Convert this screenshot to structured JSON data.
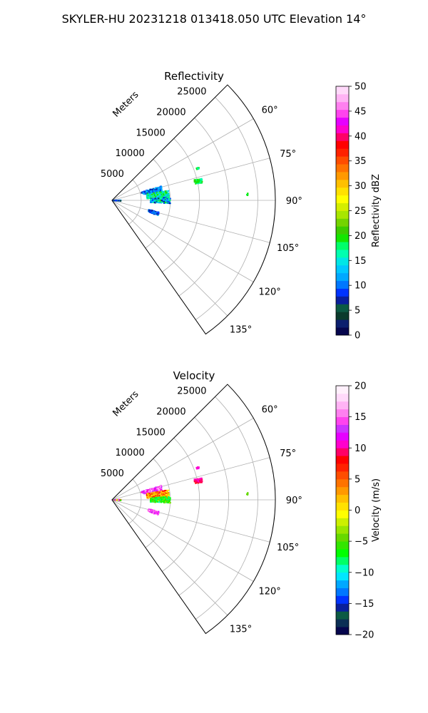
{
  "suptitle": "SKYLER-HU  20231218  013418.050 UTC Elevation 14°",
  "chart_data": [
    {
      "type": "polar-sector",
      "title": "Reflectivity",
      "range_label": "Meters",
      "range_ticks": [
        "5000",
        "10000",
        "15000",
        "20000",
        "25000"
      ],
      "range_values": [
        5000,
        10000,
        15000,
        20000,
        25000
      ],
      "rmax": 28000,
      "azimuth_range": [
        45,
        145
      ],
      "azimuth_ticks": [
        "60°",
        "75°",
        "90°",
        "105°",
        "120°",
        "135°"
      ],
      "azimuth_values": [
        60,
        75,
        90,
        105,
        120,
        135
      ],
      "grid": true,
      "colorbar": {
        "label": "Reflectivity dBZ",
        "min": 0,
        "max": 50,
        "ticks": [
          "0",
          "5",
          "10",
          "15",
          "20",
          "25",
          "30",
          "35",
          "40",
          "45",
          "50"
        ],
        "colors": [
          "#06064d",
          "#0c1f6e",
          "#0b3b2c",
          "#0c5a44",
          "#0a1f9c",
          "#0033ff",
          "#0077ff",
          "#00a8ff",
          "#00c8ff",
          "#00e6e6",
          "#00ffb0",
          "#00ff6a",
          "#14e600",
          "#3ccc00",
          "#74d400",
          "#a8e600",
          "#d4ee00",
          "#ffff00",
          "#ffe100",
          "#ffc000",
          "#ff9900",
          "#ff7300",
          "#ff4d00",
          "#ff2200",
          "#ff0000",
          "#ff0066",
          "#ff00cc",
          "#e600ff",
          "#ff44ee",
          "#ff80f0",
          "#ffb3f5",
          "#ffd9fa"
        ]
      },
      "echo_clusters": [
        {
          "az": [
            74,
            79
          ],
          "range": [
            5200,
            8800
          ],
          "values": [
            6,
            14
          ]
        },
        {
          "az": [
            80,
            87
          ],
          "range": [
            6000,
            9800
          ],
          "values": [
            12,
            22
          ]
        },
        {
          "az": [
            87,
            93
          ],
          "range": [
            6600,
            10000
          ],
          "values": [
            6,
            20
          ]
        },
        {
          "az": [
            76,
            79
          ],
          "range": [
            14500,
            15800
          ],
          "values": [
            16,
            21
          ]
        },
        {
          "az": [
            69,
            70
          ],
          "range": [
            15400,
            15900
          ],
          "values": [
            14,
            20
          ]
        },
        {
          "az": [
            87,
            88
          ],
          "range": [
            23000,
            23300
          ],
          "values": [
            18,
            20
          ]
        },
        {
          "az": [
            104,
            108
          ],
          "range": [
            6500,
            8300
          ],
          "values": [
            6,
            12
          ]
        },
        {
          "az": [
            89,
            93
          ],
          "range": [
            200,
            1500
          ],
          "values": [
            3,
            12
          ]
        }
      ]
    },
    {
      "type": "polar-sector",
      "title": "Velocity",
      "range_label": "Meters",
      "range_ticks": [
        "5000",
        "10000",
        "15000",
        "20000",
        "25000"
      ],
      "range_values": [
        5000,
        10000,
        15000,
        20000,
        25000
      ],
      "rmax": 28000,
      "azimuth_range": [
        45,
        145
      ],
      "azimuth_ticks": [
        "60°",
        "75°",
        "90°",
        "105°",
        "120°",
        "135°"
      ],
      "azimuth_values": [
        60,
        75,
        90,
        105,
        120,
        135
      ],
      "grid": true,
      "colorbar": {
        "label": "Velocity (m/s)",
        "min": -20,
        "max": 20,
        "ticks": [
          "−20",
          "−15",
          "−10",
          "−5",
          "0",
          "5",
          "10",
          "15",
          "20"
        ],
        "colors": [
          "#06064d",
          "#0b2f55",
          "#0c5a44",
          "#0a1f9c",
          "#0033ff",
          "#0077ff",
          "#00a8ff",
          "#00e6ff",
          "#00ffcc",
          "#00ff66",
          "#00ff00",
          "#33e600",
          "#66d900",
          "#99e600",
          "#ccf000",
          "#ffff00",
          "#ffe100",
          "#ffc000",
          "#ff9900",
          "#ff7300",
          "#ff4d00",
          "#ff2200",
          "#ff0000",
          "#ff0066",
          "#ff00cc",
          "#e600ff",
          "#cc33ff",
          "#ff44ee",
          "#ff80f0",
          "#ffb3f5",
          "#ffd9fa",
          "#fff0fc"
        ]
      },
      "echo_clusters": [
        {
          "az": [
            74,
            79
          ],
          "range": [
            5200,
            8800
          ],
          "values": [
            10,
            17
          ]
        },
        {
          "az": [
            80,
            87
          ],
          "range": [
            6000,
            9800
          ],
          "values": [
            -2,
            9
          ]
        },
        {
          "az": [
            87,
            93
          ],
          "range": [
            6600,
            10000
          ],
          "values": [
            -9,
            -3
          ]
        },
        {
          "az": [
            76,
            79
          ],
          "range": [
            14500,
            15800
          ],
          "values": [
            8,
            11
          ]
        },
        {
          "az": [
            69,
            70
          ],
          "range": [
            15400,
            15900
          ],
          "values": [
            10,
            12
          ]
        },
        {
          "az": [
            87,
            88
          ],
          "range": [
            23000,
            23300
          ],
          "values": [
            -5,
            -3
          ]
        },
        {
          "az": [
            104,
            108
          ],
          "range": [
            6500,
            8300
          ],
          "values": [
            10,
            17
          ]
        },
        {
          "az": [
            89,
            93
          ],
          "range": [
            200,
            1500
          ],
          "values": [
            -14,
            16
          ]
        }
      ]
    }
  ]
}
